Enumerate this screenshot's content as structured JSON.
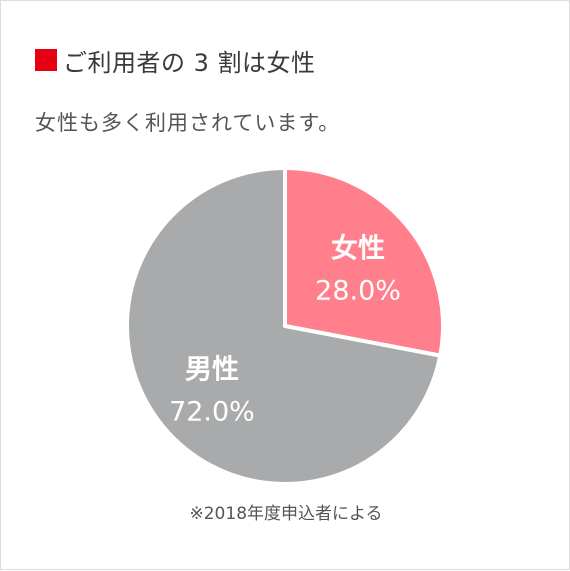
{
  "title": "ご利用者の 3 割は女性",
  "subtitle": "女性も多く利用されています。",
  "footnote": "※2018年度申込者による",
  "colors": {
    "marker": "#e60012",
    "female": "#ff808c",
    "male": "#a8aaac",
    "label": "#ffffff"
  },
  "chart_data": {
    "type": "pie",
    "title": "ご利用者の 3 割は女性",
    "slices": [
      {
        "label": "女性",
        "value": 28.0,
        "display": "28.0%",
        "color": "#ff808c"
      },
      {
        "label": "男性",
        "value": 72.0,
        "display": "72.0%",
        "color": "#a8aaac"
      }
    ],
    "start": "12 o'clock",
    "direction": "clockwise",
    "note": "※2018年度申込者による"
  }
}
